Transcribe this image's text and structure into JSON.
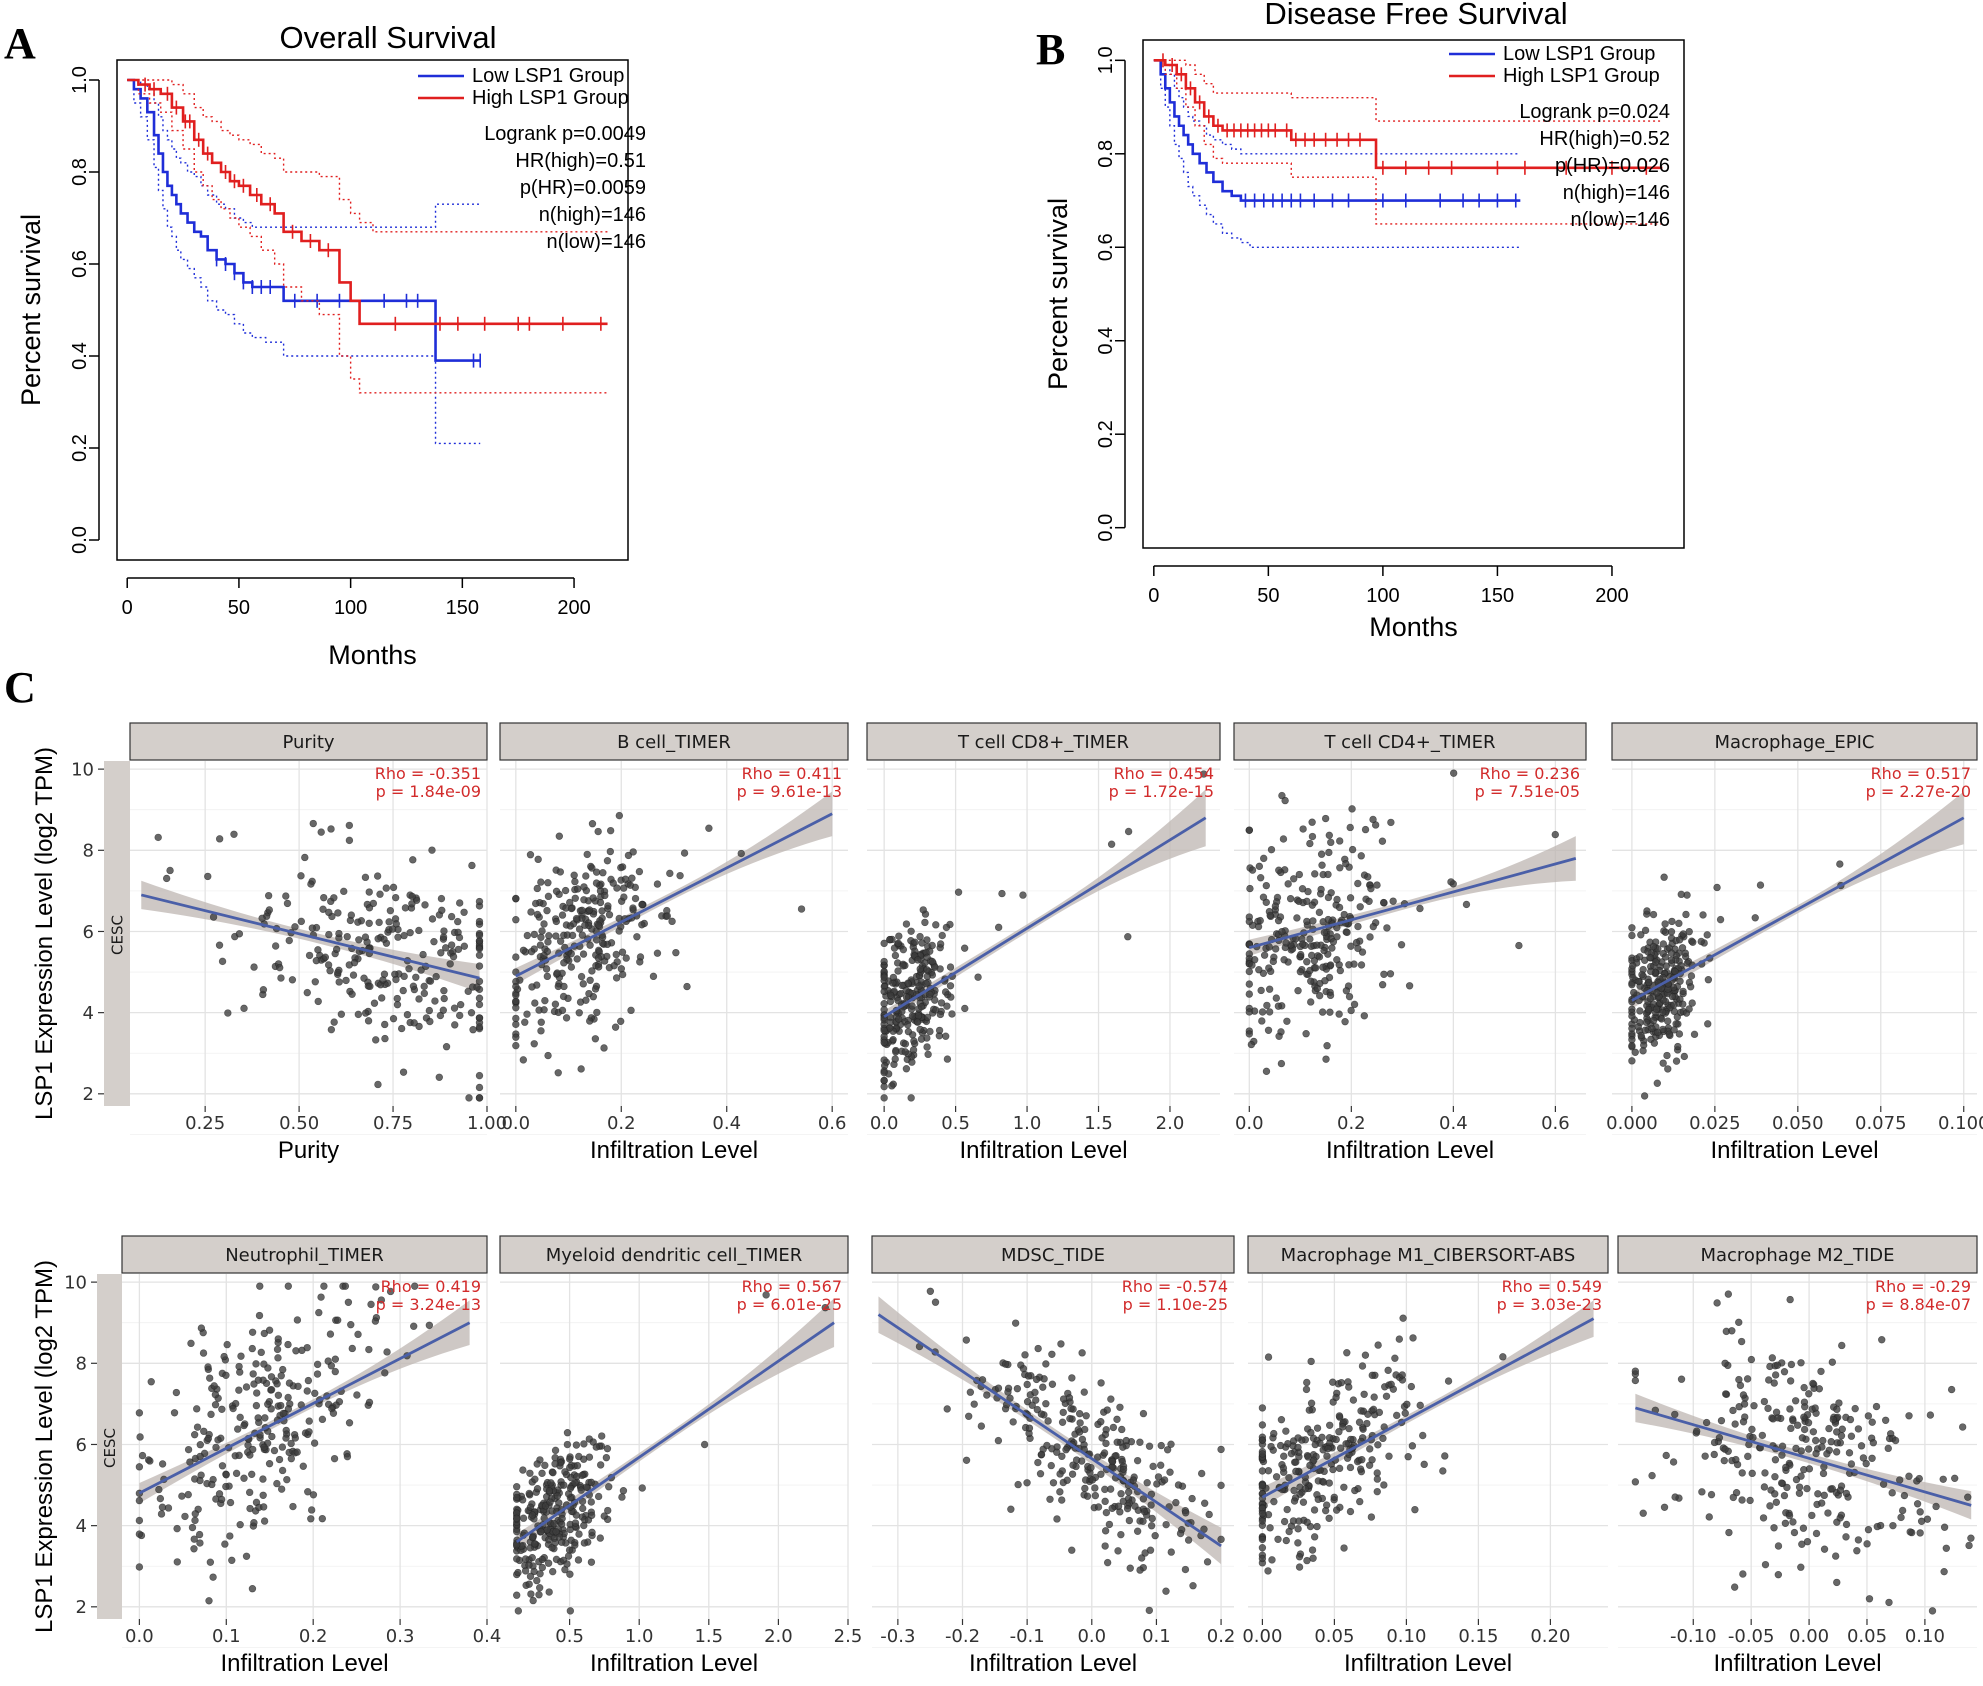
{
  "figure": {
    "panel_letters": [
      "A",
      "B",
      "C"
    ],
    "colors": {
      "low": "#1f2ed8",
      "high": "#e01f1f",
      "regression": "#4a5fa8",
      "ci_band": "#bdb6b2",
      "strip": "#d4cfcb",
      "stat": "#d22b2b",
      "point": "#3c3c3c"
    },
    "scatter": {
      "ylabel": "LSP1 Expression Level (log2 TPM)",
      "strip_label": "CESC",
      "y_ticks": [
        "2",
        "4",
        "6",
        "8",
        "10"
      ]
    }
  },
  "chart_data": [
    {
      "type": "line",
      "panel": "A",
      "title": "Overall Survival",
      "xlabel": "Months",
      "ylabel": "Percent survival",
      "xlim": [
        0,
        215
      ],
      "ylim": [
        0,
        1.0
      ],
      "x_ticks": [
        "0",
        "50",
        "100",
        "150",
        "200"
      ],
      "y_ticks": [
        "0.0",
        "0.2",
        "0.4",
        "0.6",
        "0.8",
        "1.0"
      ],
      "legend": [
        "Low LSP1 Group",
        "High LSP1 Group"
      ],
      "stats": [
        "Logrank p=0.0049",
        "HR(high)=0.51",
        "p(HR)=0.0059",
        "n(high)=146",
        "n(low)=146"
      ],
      "series": [
        {
          "name": "Low LSP1 Group",
          "color": "#1f2ed8",
          "x": [
            0,
            3,
            6,
            9,
            12,
            14,
            16,
            18,
            20,
            22,
            24,
            27,
            30,
            33,
            36,
            40,
            44,
            48,
            52,
            56,
            62,
            70,
            80,
            100,
            120,
            137,
            138,
            158
          ],
          "y": [
            1.0,
            0.98,
            0.96,
            0.93,
            0.88,
            0.84,
            0.8,
            0.77,
            0.75,
            0.73,
            0.71,
            0.69,
            0.67,
            0.66,
            0.63,
            0.61,
            0.6,
            0.58,
            0.56,
            0.55,
            0.55,
            0.52,
            0.52,
            0.52,
            0.52,
            0.52,
            0.39,
            0.39
          ],
          "lower": [
            1.0,
            0.95,
            0.92,
            0.87,
            0.81,
            0.76,
            0.72,
            0.68,
            0.66,
            0.63,
            0.61,
            0.59,
            0.57,
            0.55,
            0.52,
            0.5,
            0.49,
            0.47,
            0.45,
            0.44,
            0.43,
            0.4,
            0.4,
            0.4,
            0.4,
            0.4,
            0.21,
            0.21
          ],
          "upper": [
            1.0,
            1.0,
            0.99,
            0.98,
            0.95,
            0.92,
            0.89,
            0.87,
            0.85,
            0.83,
            0.82,
            0.8,
            0.79,
            0.77,
            0.75,
            0.73,
            0.72,
            0.7,
            0.69,
            0.68,
            0.68,
            0.68,
            0.68,
            0.68,
            0.68,
            0.68,
            0.73,
            0.73
          ],
          "censor_x": [
            40,
            44,
            48,
            52,
            56,
            60,
            64,
            75,
            85,
            95,
            115,
            125,
            130,
            155,
            158
          ]
        },
        {
          "name": "High LSP1 Group",
          "color": "#e01f1f",
          "x": [
            0,
            5,
            10,
            15,
            20,
            25,
            30,
            34,
            38,
            42,
            46,
            50,
            55,
            60,
            66,
            70,
            78,
            86,
            95,
            100,
            104,
            110,
            150,
            215
          ],
          "y": [
            1.0,
            0.99,
            0.98,
            0.97,
            0.94,
            0.91,
            0.87,
            0.84,
            0.82,
            0.8,
            0.78,
            0.77,
            0.75,
            0.73,
            0.71,
            0.67,
            0.65,
            0.63,
            0.56,
            0.52,
            0.47,
            0.47,
            0.47,
            0.47
          ],
          "lower": [
            1.0,
            0.97,
            0.95,
            0.93,
            0.89,
            0.85,
            0.8,
            0.77,
            0.74,
            0.72,
            0.7,
            0.68,
            0.66,
            0.63,
            0.6,
            0.55,
            0.52,
            0.49,
            0.4,
            0.35,
            0.32,
            0.32,
            0.32,
            0.32
          ],
          "upper": [
            1.0,
            1.0,
            1.0,
            1.0,
            0.99,
            0.97,
            0.94,
            0.92,
            0.91,
            0.89,
            0.88,
            0.87,
            0.86,
            0.84,
            0.83,
            0.8,
            0.8,
            0.79,
            0.74,
            0.71,
            0.69,
            0.67,
            0.67,
            0.67
          ],
          "censor_x": [
            8,
            12,
            18,
            22,
            26,
            28,
            32,
            36,
            44,
            48,
            52,
            58,
            64,
            74,
            82,
            90,
            120,
            140,
            148,
            160,
            175,
            180,
            195,
            212
          ]
        }
      ]
    },
    {
      "type": "line",
      "panel": "B",
      "title": "Disease Free Survival",
      "xlabel": "Months",
      "ylabel": "Percent survival",
      "xlim": [
        0,
        222
      ],
      "ylim": [
        0,
        1.0
      ],
      "x_ticks": [
        "0",
        "50",
        "100",
        "150",
        "200"
      ],
      "y_ticks": [
        "0.0",
        "0.2",
        "0.4",
        "0.6",
        "0.8",
        "1.0"
      ],
      "legend": [
        "Low LSP1 Group",
        "High LSP1 Group"
      ],
      "stats": [
        "Logrank p=0.024",
        "HR(high)=0.52",
        "p(HR)=0.026",
        "n(high)=146",
        "n(low)=146"
      ],
      "series": [
        {
          "name": "Low LSP1 Group",
          "color": "#1f2ed8",
          "x": [
            0,
            3,
            5,
            7,
            9,
            11,
            13,
            15,
            17,
            20,
            23,
            26,
            30,
            34,
            38,
            42,
            160
          ],
          "y": [
            1.0,
            0.97,
            0.94,
            0.91,
            0.88,
            0.86,
            0.84,
            0.82,
            0.8,
            0.78,
            0.76,
            0.74,
            0.72,
            0.71,
            0.7,
            0.7,
            0.7
          ],
          "lower": [
            1.0,
            0.94,
            0.9,
            0.86,
            0.82,
            0.79,
            0.76,
            0.73,
            0.71,
            0.69,
            0.67,
            0.65,
            0.63,
            0.62,
            0.61,
            0.6,
            0.6
          ],
          "upper": [
            1.0,
            1.0,
            0.99,
            0.97,
            0.94,
            0.92,
            0.9,
            0.88,
            0.87,
            0.86,
            0.84,
            0.83,
            0.82,
            0.81,
            0.8,
            0.8,
            0.8
          ],
          "censor_x": [
            40,
            44,
            48,
            52,
            56,
            60,
            64,
            70,
            78,
            85,
            100,
            110,
            125,
            135,
            142,
            150,
            158
          ]
        },
        {
          "name": "High LSP1 Group",
          "color": "#e01f1f",
          "x": [
            0,
            5,
            10,
            14,
            18,
            22,
            26,
            30,
            55,
            60,
            97,
            222
          ],
          "y": [
            1.0,
            0.99,
            0.97,
            0.94,
            0.91,
            0.88,
            0.86,
            0.85,
            0.85,
            0.83,
            0.77,
            0.77
          ],
          "lower": [
            1.0,
            0.97,
            0.94,
            0.9,
            0.86,
            0.82,
            0.79,
            0.78,
            0.78,
            0.75,
            0.65,
            0.65
          ],
          "upper": [
            1.0,
            1.0,
            1.0,
            0.99,
            0.97,
            0.95,
            0.93,
            0.93,
            0.93,
            0.92,
            0.87,
            0.87
          ],
          "censor_x": [
            4,
            8,
            12,
            16,
            20,
            24,
            28,
            32,
            35,
            38,
            41,
            44,
            47,
            50,
            53,
            58,
            62,
            66,
            70,
            75,
            80,
            85,
            90,
            100,
            110,
            120,
            130,
            150,
            162,
            180,
            200,
            215
          ]
        }
      ]
    },
    {
      "type": "scatter",
      "panel": "C",
      "title": "Purity",
      "xlabel": "Purity",
      "xlim": [
        0.05,
        1.0
      ],
      "ylim": [
        1.7,
        10.2
      ],
      "x_ticks": [
        0.25,
        0.5,
        0.75,
        1.0
      ],
      "x_tick_labels": [
        "0.25",
        "0.50",
        "0.75",
        "1.00"
      ],
      "rho": "Rho = -0.351",
      "p": "p = 1.84e-09",
      "fit": [
        [
          0.08,
          6.9
        ],
        [
          0.98,
          4.85
        ]
      ],
      "ci": [
        0.35,
        0.12,
        0.35
      ],
      "cloud": {
        "x_min": 0.08,
        "x_max": 0.98,
        "x_center": 0.75,
        "x_spread": 0.2,
        "y_sd": 1.2,
        "n": 260,
        "seed": 11
      }
    },
    {
      "type": "scatter",
      "panel": "C",
      "title": "B cell_TIMER",
      "xlabel": "Infiltration Level",
      "xlim": [
        -0.03,
        0.63
      ],
      "ylim": [
        1.7,
        10.2
      ],
      "x_ticks": [
        0.0,
        0.2,
        0.4,
        0.6
      ],
      "x_tick_labels": [
        "0.0",
        "0.2",
        "0.4",
        "0.6"
      ],
      "rho": "Rho = 0.411",
      "p": "p = 9.61e-13",
      "fit": [
        [
          0.0,
          4.9
        ],
        [
          0.6,
          8.9
        ]
      ],
      "ci": [
        0.2,
        0.1,
        0.55
      ],
      "cloud": {
        "x_min": 0.0,
        "x_max": 0.6,
        "x_center": 0.12,
        "x_spread": 0.08,
        "y_sd": 1.15,
        "n": 280,
        "seed": 23
      }
    },
    {
      "type": "scatter",
      "panel": "C",
      "title": "T cell CD8+_TIMER",
      "xlabel": "Infiltration Level",
      "xlim": [
        -0.12,
        2.35
      ],
      "ylim": [
        1.7,
        10.2
      ],
      "x_ticks": [
        0.0,
        0.5,
        1.0,
        1.5,
        2.0
      ],
      "x_tick_labels": [
        "0.0",
        "0.5",
        "1.0",
        "1.5",
        "2.0"
      ],
      "rho": "Rho = 0.454",
      "p": "p = 1.72e-15",
      "fit": [
        [
          0.0,
          3.9
        ],
        [
          2.25,
          8.8
        ]
      ],
      "ci": [
        0.15,
        0.1,
        0.7
      ],
      "cloud": {
        "x_min": 0.0,
        "x_max": 2.25,
        "x_center": 0.2,
        "x_spread": 0.15,
        "y_sd": 0.85,
        "n": 280,
        "seed": 37
      }
    },
    {
      "type": "scatter",
      "panel": "C",
      "title": "T cell CD4+_TIMER",
      "xlabel": "Infiltration Level",
      "xlim": [
        -0.03,
        0.66
      ],
      "ylim": [
        1.7,
        10.2
      ],
      "x_ticks": [
        0.0,
        0.2,
        0.4,
        0.6
      ],
      "x_tick_labels": [
        "0.0",
        "0.2",
        "0.4",
        "0.6"
      ],
      "rho": "Rho = 0.236",
      "p": "p = 7.51e-05",
      "fit": [
        [
          0.0,
          5.6
        ],
        [
          0.64,
          7.8
        ]
      ],
      "ci": [
        0.2,
        0.1,
        0.55
      ],
      "cloud": {
        "x_min": 0.0,
        "x_max": 0.64,
        "x_center": 0.12,
        "x_spread": 0.08,
        "y_sd": 1.35,
        "n": 280,
        "seed": 41
      }
    },
    {
      "type": "scatter",
      "panel": "C",
      "title": "Macrophage_EPIC",
      "xlabel": "Infiltration Level",
      "xlim": [
        -0.006,
        0.104
      ],
      "ylim": [
        1.7,
        10.2
      ],
      "x_ticks": [
        0.0,
        0.025,
        0.05,
        0.075,
        0.1
      ],
      "x_tick_labels": [
        "0.000",
        "0.025",
        "0.050",
        "0.075",
        "0.100"
      ],
      "rho": "Rho = 0.517",
      "p": "p = 2.27e-20",
      "fit": [
        [
          0.0,
          4.3
        ],
        [
          0.1,
          8.8
        ]
      ],
      "ci": [
        0.2,
        0.1,
        0.65
      ],
      "cloud": {
        "x_min": 0.0,
        "x_max": 0.1,
        "x_center": 0.008,
        "x_spread": 0.006,
        "y_sd": 0.95,
        "n": 280,
        "seed": 53
      }
    },
    {
      "type": "scatter",
      "panel": "C",
      "title": "Neutrophil_TIMER",
      "xlabel": "Infiltration Level",
      "xlim": [
        -0.02,
        0.4
      ],
      "ylim": [
        1.7,
        10.2
      ],
      "x_ticks": [
        0.0,
        0.1,
        0.2,
        0.3,
        0.4
      ],
      "x_tick_labels": [
        "0.0",
        "0.1",
        "0.2",
        "0.3",
        "0.4"
      ],
      "rho": "Rho = 0.419",
      "p": "p = 3.24e-13",
      "fit": [
        [
          0.0,
          4.8
        ],
        [
          0.38,
          9.0
        ]
      ],
      "ci": [
        0.25,
        0.1,
        0.55
      ],
      "cloud": {
        "x_min": 0.0,
        "x_max": 0.38,
        "x_center": 0.13,
        "x_spread": 0.07,
        "y_sd": 1.3,
        "n": 280,
        "seed": 67
      }
    },
    {
      "type": "scatter",
      "panel": "C",
      "title": "Myeloid dendritic cell_TIMER",
      "xlabel": "Infiltration Level",
      "xlim": [
        0.0,
        2.5
      ],
      "ylim": [
        1.7,
        10.2
      ],
      "x_ticks": [
        0.5,
        1.0,
        1.5,
        2.0,
        2.5
      ],
      "x_tick_labels": [
        "0.5",
        "1.0",
        "1.5",
        "2.0",
        "2.5"
      ],
      "rho": "Rho = 0.567",
      "p": "p = 6.01e-25",
      "fit": [
        [
          0.12,
          3.6
        ],
        [
          2.4,
          9.0
        ]
      ],
      "ci": [
        0.2,
        0.1,
        0.6
      ],
      "cloud": {
        "x_min": 0.12,
        "x_max": 2.4,
        "x_center": 0.4,
        "x_spread": 0.18,
        "y_sd": 0.85,
        "n": 280,
        "seed": 79
      }
    },
    {
      "type": "scatter",
      "panel": "C",
      "title": "MDSC_TIDE",
      "xlabel": "Infiltration Level",
      "xlim": [
        -0.34,
        0.22
      ],
      "ylim": [
        1.7,
        10.2
      ],
      "x_ticks": [
        -0.3,
        -0.2,
        -0.1,
        0.0,
        0.1,
        0.2
      ],
      "x_tick_labels": [
        "-0.3",
        "-0.2",
        "-0.1",
        "0.0",
        "0.1",
        "0.2"
      ],
      "rho": "Rho = -0.574",
      "p": "p = 1.10e-25",
      "fit": [
        [
          -0.33,
          9.2
        ],
        [
          0.2,
          3.5
        ]
      ],
      "ci": [
        0.45,
        0.12,
        0.45
      ],
      "cloud": {
        "x_min": -0.33,
        "x_max": 0.2,
        "x_center": 0.0,
        "x_spread": 0.09,
        "y_sd": 1.0,
        "n": 280,
        "seed": 83
      }
    },
    {
      "type": "scatter",
      "panel": "C",
      "title": "Macrophage M1_CIBERSORT-ABS",
      "xlabel": "Infiltration Level",
      "xlim": [
        -0.01,
        0.24
      ],
      "ylim": [
        1.7,
        10.2
      ],
      "x_ticks": [
        0.0,
        0.05,
        0.1,
        0.15,
        0.2
      ],
      "x_tick_labels": [
        "0.00",
        "0.05",
        "0.10",
        "0.15",
        "0.20"
      ],
      "rho": "Rho = 0.549",
      "p": "p = 3.03e-23",
      "fit": [
        [
          0.0,
          4.7
        ],
        [
          0.23,
          9.1
        ]
      ],
      "ci": [
        0.25,
        0.1,
        0.45
      ],
      "cloud": {
        "x_min": 0.0,
        "x_max": 0.23,
        "x_center": 0.04,
        "x_spread": 0.04,
        "y_sd": 1.1,
        "n": 280,
        "seed": 97
      }
    },
    {
      "type": "scatter",
      "panel": "C",
      "title": "Macrophage M2_TIDE",
      "xlabel": "Infiltration Level",
      "xlim": [
        -0.165,
        0.145
      ],
      "ylim": [
        1.7,
        10.2
      ],
      "x_ticks": [
        -0.1,
        -0.05,
        0.0,
        0.05,
        0.1
      ],
      "x_tick_labels": [
        "-0.10",
        "-0.05",
        "0.00",
        "0.05",
        "0.10"
      ],
      "rho": "Rho = -0.29",
      "p": "p = 8.84e-07",
      "fit": [
        [
          -0.15,
          6.9
        ],
        [
          0.14,
          4.5
        ]
      ],
      "ci": [
        0.35,
        0.12,
        0.35
      ],
      "cloud": {
        "x_min": -0.15,
        "x_max": 0.14,
        "x_center": 0.0,
        "x_spread": 0.06,
        "y_sd": 1.35,
        "n": 280,
        "seed": 101
      }
    }
  ]
}
